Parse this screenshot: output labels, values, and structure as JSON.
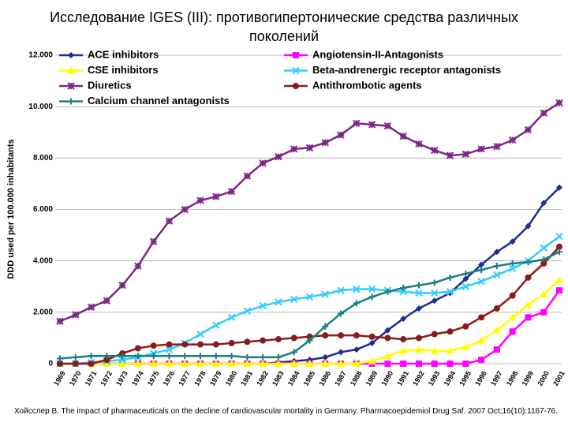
{
  "chart_data": {
    "type": "line",
    "title": "Исследование IGES (III): противогипертонические средства различных поколений",
    "y_label": "DDD used per 100.000 inhabitants",
    "source": "Хойсслер B. The impact of pharmaceuticals on the decline of cardiovascular mortality in Germany. Pharmacoepidemiol Drug Saf. 2007 Oct;16(10):1167-76.",
    "categories": [
      "1969",
      "1970",
      "1971",
      "1972",
      "1973",
      "1974",
      "1975",
      "1976",
      "1977",
      "1978",
      "1979",
      "1980",
      "1981",
      "1982",
      "1983",
      "1984",
      "1985",
      "1986",
      "1987",
      "1988",
      "1989",
      "1990",
      "1991",
      "1992",
      "1993",
      "1994",
      "1995",
      "1996",
      "1997",
      "1998",
      "1999",
      "2000",
      "2001"
    ],
    "ylim": [
      0,
      12000
    ],
    "yticks": [
      0,
      {
        "value": 2000,
        "label": "2.000"
      },
      {
        "value": 4000,
        "label": "4.000"
      },
      {
        "value": 6000,
        "label": "6.000"
      },
      {
        "value": 8000,
        "label": "8.000"
      },
      {
        "value": 10000,
        "label": "10.000"
      },
      {
        "value": 12000,
        "label": "12.000"
      }
    ],
    "grid": true,
    "series": [
      {
        "name": "ACE inhibitors",
        "color": "#1f2f8f",
        "marker": "diamond",
        "values": [
          0,
          0,
          0,
          0,
          0,
          0,
          0,
          0,
          0,
          0,
          0,
          0,
          0,
          0,
          50,
          100,
          150,
          250,
          450,
          550,
          800,
          1300,
          1750,
          2150,
          2450,
          2750,
          3300,
          3850,
          4350,
          4750,
          5350,
          6250,
          6850
        ]
      },
      {
        "name": "Angiotensin-II-Antagonists",
        "color": "#ff00ff",
        "marker": "square",
        "values": [
          0,
          0,
          0,
          0,
          0,
          0,
          0,
          0,
          0,
          0,
          0,
          0,
          0,
          0,
          0,
          0,
          0,
          0,
          0,
          0,
          0,
          0,
          0,
          0,
          0,
          0,
          0,
          150,
          550,
          1250,
          1800,
          2000,
          2850
        ]
      },
      {
        "name": "CSE inhibitors",
        "color": "#ffff00",
        "marker": "triangle",
        "values": [
          0,
          0,
          0,
          0,
          0,
          0,
          0,
          0,
          0,
          0,
          0,
          0,
          0,
          0,
          0,
          0,
          0,
          0,
          0,
          0,
          100,
          300,
          500,
          550,
          500,
          500,
          650,
          900,
          1300,
          1800,
          2300,
          2700,
          3250
        ]
      },
      {
        "name": "Beta-andrenergic receptor antagonists",
        "color": "#33ccff",
        "marker": "x",
        "values": [
          0,
          0,
          50,
          100,
          150,
          250,
          400,
          550,
          800,
          1150,
          1500,
          1800,
          2050,
          2250,
          2400,
          2500,
          2600,
          2700,
          2850,
          2900,
          2900,
          2850,
          2800,
          2750,
          2750,
          2800,
          3000,
          3200,
          3450,
          3700,
          4000,
          4500,
          4950
        ]
      },
      {
        "name": "Diuretics",
        "color": "#7b2a84",
        "marker": "star",
        "values": [
          1650,
          1900,
          2200,
          2450,
          3050,
          3800,
          4750,
          5550,
          6000,
          6350,
          6500,
          6700,
          7300,
          7800,
          8050,
          8350,
          8400,
          8600,
          8900,
          9350,
          9300,
          9250,
          8850,
          8550,
          8300,
          8100,
          8150,
          8350,
          8450,
          8700,
          9100,
          9750,
          10150
        ]
      },
      {
        "name": "Antithrombotic agents",
        "color": "#8b1a1a",
        "marker": "circle",
        "values": [
          0,
          0,
          0,
          150,
          400,
          600,
          700,
          750,
          750,
          750,
          750,
          800,
          850,
          900,
          950,
          1000,
          1050,
          1100,
          1100,
          1100,
          1050,
          1000,
          950,
          1000,
          1150,
          1250,
          1450,
          1800,
          2150,
          2650,
          3350,
          3900,
          4550
        ]
      },
      {
        "name": "Calcium channel antagonists",
        "color": "#1a7f7f",
        "marker": "plus",
        "values": [
          200,
          250,
          300,
          300,
          300,
          300,
          300,
          300,
          300,
          300,
          300,
          300,
          250,
          250,
          250,
          450,
          900,
          1450,
          1950,
          2350,
          2600,
          2800,
          2950,
          3050,
          3150,
          3350,
          3500,
          3650,
          3800,
          3900,
          3950,
          4050,
          4350
        ]
      }
    ]
  }
}
